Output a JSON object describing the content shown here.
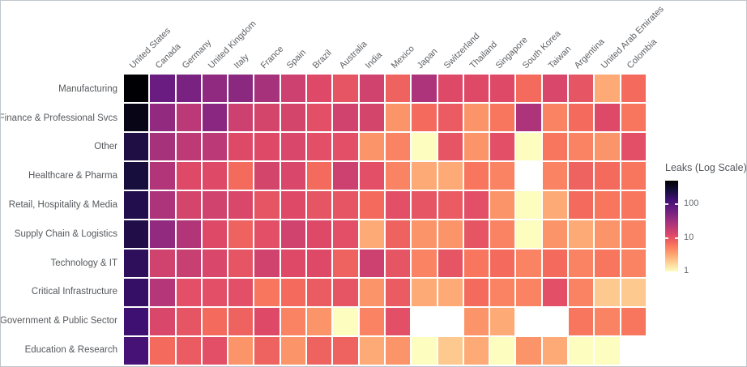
{
  "chart_data": {
    "type": "heatmap",
    "scale": "log",
    "vmin": 1,
    "vmax": 500,
    "missing_color": "#ffffff",
    "colormap_name": "magma-reversed-dark-is-high",
    "colormap": [
      "#000004",
      "#140e36",
      "#3b0f70",
      "#641a80",
      "#8c2981",
      "#b73779",
      "#de4968",
      "#f7705c",
      "#fe9f6d",
      "#fecf92",
      "#fcfdbf"
    ],
    "categories": [
      "United States",
      "Canada",
      "Germany",
      "United Kingdom",
      "Italy",
      "France",
      "Spain",
      "Brazil",
      "Australia",
      "India",
      "Mexico",
      "Japan",
      "Switzerland",
      "Thailand",
      "Singapore",
      "South Korea",
      "Taiwan",
      "Argentina",
      "United Arab Emirates",
      "Colombia"
    ],
    "rows": [
      {
        "label": "Manufacturing",
        "values": [
          500,
          70,
          55,
          40,
          42,
          28,
          16,
          12,
          10,
          15,
          8,
          26,
          12,
          12,
          12,
          7,
          13,
          10,
          3,
          7
        ]
      },
      {
        "label": "Finance & Professional Svcs",
        "values": [
          400,
          38,
          21,
          43,
          16,
          14,
          14,
          11,
          15,
          14,
          4,
          7,
          9,
          4,
          6,
          26,
          5,
          7,
          12,
          6
        ]
      },
      {
        "label": "Other",
        "values": [
          230,
          28,
          20,
          21,
          12,
          12,
          13,
          11,
          11,
          4,
          5,
          1,
          10,
          4,
          11,
          1,
          6,
          5,
          4,
          11
        ]
      },
      {
        "label": "Healthcare & Pharma",
        "values": [
          250,
          24,
          12,
          12,
          7,
          14,
          13,
          7,
          16,
          11,
          5,
          3,
          3,
          6,
          5,
          null,
          5,
          8,
          7,
          6
        ]
      },
      {
        "label": "Retail, Hospitality & Media",
        "values": [
          210,
          26,
          14,
          15,
          13,
          10,
          12,
          10,
          10,
          7,
          11,
          10,
          9,
          11,
          4,
          1,
          3,
          7,
          6,
          6
        ]
      },
      {
        "label": "Supply Chain & Logistics",
        "values": [
          220,
          38,
          24,
          12,
          8,
          11,
          15,
          12,
          11,
          3,
          8,
          4,
          4,
          10,
          5,
          1,
          4,
          3,
          4,
          5
        ]
      },
      {
        "label": "Technology & IT",
        "values": [
          180,
          15,
          17,
          13,
          10,
          15,
          12,
          12,
          8,
          16,
          10,
          5,
          10,
          6,
          7,
          5,
          7,
          5,
          6,
          5
        ]
      },
      {
        "label": "Critical Infrastructure",
        "values": [
          160,
          23,
          11,
          11,
          11,
          6,
          7,
          9,
          10,
          4,
          9,
          3,
          3,
          7,
          5,
          5,
          11,
          5,
          2,
          2
        ]
      },
      {
        "label": "Government & Public Sector",
        "values": [
          140,
          13,
          10,
          7,
          8,
          12,
          5,
          4,
          1,
          5,
          11,
          null,
          null,
          4,
          3,
          null,
          null,
          6,
          5,
          6
        ]
      },
      {
        "label": "Education & Research",
        "values": [
          120,
          7,
          9,
          11,
          4,
          8,
          4,
          8,
          8,
          3,
          4,
          1,
          2,
          3,
          1,
          4,
          3,
          1,
          1,
          null
        ]
      }
    ],
    "legend": {
      "title": "Leaks (Log Scale)",
      "ticks": [
        {
          "label": "100",
          "value": 100
        },
        {
          "label": "10",
          "value": 10
        },
        {
          "label": "1",
          "value": 1
        }
      ]
    },
    "xlabel": "",
    "ylabel": "",
    "grid": false,
    "legend_position": "right"
  }
}
